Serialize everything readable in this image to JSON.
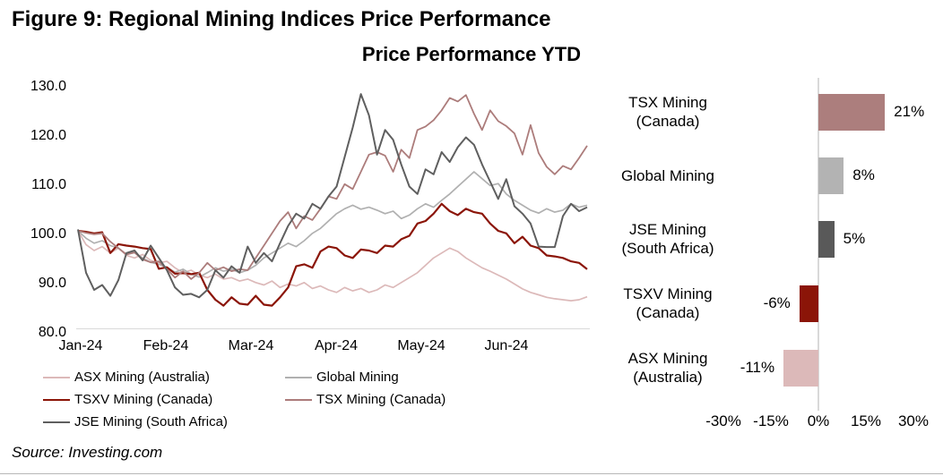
{
  "figure_title": "Figure 9: Regional Mining Indices Price Performance",
  "chart_title": "Price Performance YTD",
  "source": "Source: Investing.com",
  "colors": {
    "asx": "#DCB9B9",
    "tsxv": "#8B1508",
    "jse": "#5F5F5F",
    "global": "#B0B0B0",
    "tsx": "#AC7C7B",
    "axis_line": "#D9D9D9",
    "text": "#000000"
  },
  "legend": {
    "items": [
      {
        "label": "ASX Mining (Australia)",
        "color": "#DCB9B9"
      },
      {
        "label": "Global Mining",
        "color": "#B0B0B0"
      },
      {
        "label": "TSXV Mining (Canada)",
        "color": "#8B1508"
      },
      {
        "label": "TSX Mining (Canada)",
        "color": "#AC7C7B"
      },
      {
        "label": "JSE Mining (South Africa)",
        "color": "#5F5F5F"
      }
    ]
  },
  "chart_data": [
    {
      "type": "line",
      "title": "Price Performance YTD",
      "x_tick_labels": [
        "Jan-24",
        "Feb-24",
        "Mar-24",
        "Apr-24",
        "May-24",
        "Jun-24"
      ],
      "y_tick_labels": [
        "130.0",
        "120.0",
        "110.0",
        "100.0",
        "90.0",
        "80.0"
      ],
      "ylim": [
        80,
        130
      ],
      "grid": false,
      "series": [
        {
          "name": "ASX Mining (Australia)",
          "color": "#DCB9B9",
          "values": [
            100.0,
            97.2,
            96.0,
            96.8,
            95.5,
            96.5,
            95.0,
            94.5,
            95.2,
            94.0,
            93.5,
            93.8,
            92.5,
            91.5,
            92.0,
            91.0,
            90.5,
            91.2,
            90.2,
            90.5,
            89.8,
            90.2,
            89.5,
            89.0,
            89.8,
            88.5,
            89.2,
            88.8,
            89.5,
            88.3,
            88.8,
            88.0,
            87.5,
            88.5,
            87.8,
            88.3,
            87.5,
            88.0,
            89.0,
            88.5,
            89.5,
            90.5,
            91.5,
            93.0,
            94.5,
            95.5,
            96.5,
            95.8,
            94.5,
            93.5,
            92.5,
            91.8,
            91.0,
            90.2,
            89.2,
            88.2,
            87.5,
            87.0,
            86.5,
            86.2,
            86.0,
            85.8,
            86.0,
            86.6
          ]
        },
        {
          "name": "Global Mining",
          "color": "#B0B0B0",
          "values": [
            100.0,
            98.5,
            97.5,
            98.0,
            97.0,
            96.5,
            95.2,
            95.6,
            94.5,
            93.6,
            93.2,
            92.6,
            91.6,
            92.2,
            91.2,
            90.6,
            91.5,
            92.5,
            91.8,
            92.2,
            91.5,
            92.0,
            93.0,
            94.5,
            95.5,
            96.5,
            97.5,
            96.8,
            98.0,
            99.5,
            100.5,
            102.0,
            103.5,
            104.5,
            105.2,
            104.4,
            104.8,
            104.2,
            103.5,
            104.0,
            102.5,
            103.2,
            104.5,
            105.5,
            104.8,
            106.2,
            107.5,
            109.0,
            110.5,
            112.0,
            110.6,
            109.2,
            109.6,
            107.5,
            106.2,
            105.2,
            104.2,
            103.6,
            104.5,
            103.8,
            104.2,
            105.5,
            104.8,
            105.2
          ]
        },
        {
          "name": "TSXV Mining (Canada)",
          "color": "#8B1508",
          "values": [
            100.0,
            99.8,
            99.5,
            99.7,
            95.5,
            97.3,
            97.0,
            96.8,
            96.5,
            96.3,
            92.3,
            92.6,
            91.3,
            91.4,
            91.2,
            91.5,
            88.0,
            86.0,
            84.8,
            86.5,
            85.2,
            85.0,
            86.8,
            85.0,
            84.8,
            86.5,
            88.5,
            92.8,
            93.2,
            92.5,
            95.8,
            96.8,
            96.5,
            95.0,
            94.5,
            96.2,
            96.0,
            95.5,
            97.0,
            96.8,
            98.3,
            99.0,
            101.5,
            102.0,
            103.5,
            105.5,
            104.0,
            103.2,
            104.5,
            103.8,
            103.5,
            101.5,
            100.0,
            99.5,
            97.5,
            98.8,
            97.0,
            96.5,
            95.0,
            94.8,
            94.5,
            93.8,
            93.5,
            92.2
          ]
        },
        {
          "name": "TSX Mining (Canada)",
          "color": "#AC7C7B",
          "values": [
            100.0,
            99.6,
            99.3,
            99.5,
            97.8,
            96.5,
            95.2,
            95.6,
            94.2,
            93.6,
            93.8,
            92.2,
            90.5,
            91.8,
            90.2,
            91.5,
            93.5,
            92.0,
            92.6,
            91.8,
            92.2,
            92.0,
            94.5,
            97.0,
            99.5,
            102.0,
            103.8,
            100.5,
            103.0,
            102.2,
            104.5,
            107.0,
            106.5,
            109.5,
            108.5,
            112.0,
            115.5,
            116.0,
            115.3,
            112.0,
            116.5,
            114.8,
            120.5,
            121.2,
            122.5,
            124.5,
            127.0,
            126.3,
            127.6,
            123.8,
            120.5,
            124.5,
            122.3,
            121.3,
            119.8,
            115.5,
            121.5,
            115.8,
            113.0,
            111.5,
            113.2,
            112.5,
            114.8,
            117.3
          ]
        },
        {
          "name": "JSE Mining (South Africa)",
          "color": "#5F5F5F",
          "values": [
            100.3,
            91.5,
            88.0,
            89.0,
            86.8,
            90.0,
            95.5,
            96.0,
            94.0,
            97.0,
            94.5,
            92.0,
            88.5,
            87.0,
            87.2,
            86.5,
            88.0,
            92.0,
            90.5,
            92.8,
            91.5,
            96.8,
            93.5,
            95.5,
            93.8,
            97.5,
            101.0,
            103.5,
            102.5,
            105.5,
            104.5,
            107.0,
            109.0,
            115.0,
            121.0,
            127.8,
            123.5,
            115.5,
            120.5,
            118.5,
            113.5,
            109.0,
            107.5,
            112.5,
            111.5,
            116.0,
            114.0,
            117.0,
            119.0,
            117.5,
            113.5,
            110.0,
            106.5,
            110.5,
            105.0,
            103.5,
            101.5,
            96.8,
            96.7,
            96.7,
            103.0,
            105.5,
            104.0,
            104.8
          ]
        }
      ]
    },
    {
      "type": "bar",
      "orientation": "horizontal",
      "categories": [
        "TSX Mining (Canada)",
        "Global Mining",
        "JSE Mining (South Africa)",
        "TSXV Mining (Canada)",
        "ASX Mining (Australia)"
      ],
      "category_lines": [
        [
          "TSX Mining",
          "(Canada)"
        ],
        [
          "Global Mining"
        ],
        [
          "JSE Mining",
          "(South Africa)"
        ],
        [
          "TSXV Mining",
          "(Canada)"
        ],
        [
          "ASX Mining",
          "(Australia)"
        ]
      ],
      "values": [
        21,
        8,
        5,
        -6,
        -11
      ],
      "value_labels": [
        "21%",
        "8%",
        "5%",
        "-6%",
        "-11%"
      ],
      "bar_colors": [
        "#AC7E7D",
        "#B3B3B3",
        "#595959",
        "#8B1508",
        "#DCB9B9"
      ],
      "xlim": [
        -30,
        30
      ],
      "x_tick_labels": [
        "-30%",
        "-15%",
        "0%",
        "15%",
        "30%"
      ],
      "x_tick_values": [
        -30,
        -15,
        0,
        15,
        30
      ],
      "grid": false
    }
  ]
}
